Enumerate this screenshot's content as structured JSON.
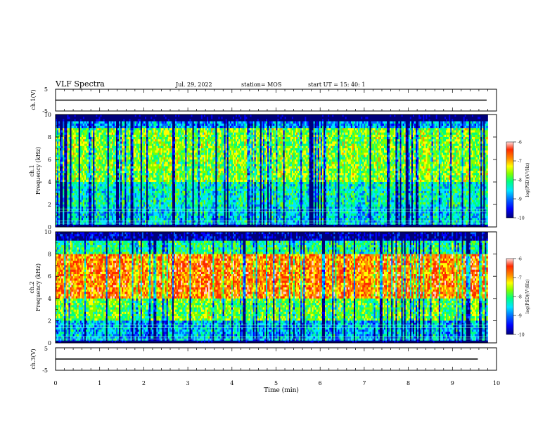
{
  "header": {
    "title": "VLF Spectra",
    "date": "Jul. 29, 2022",
    "station": "station= MOS",
    "start": "start  UT =  15: 40: 1"
  },
  "colors": {
    "colormap": [
      "#00007a",
      "#0000ff",
      "#0066ff",
      "#00e5ff",
      "#00ff7f",
      "#7fff00",
      "#ffff00",
      "#ff8c00",
      "#ff2a00",
      "#ffd6d6"
    ]
  },
  "chart_data": [
    {
      "type": "line",
      "panel": "ch1-voltage",
      "ylabel": "ch.1(V)",
      "ylim": [
        -5,
        5
      ],
      "yticks": [
        "5",
        "-5"
      ],
      "x": [
        0,
        10
      ],
      "y": [
        0,
        0
      ],
      "grid": false
    },
    {
      "type": "heatmap",
      "panel": "ch1-spectrogram",
      "ylabel_line1": "ch.1",
      "ylabel_line2": "Frequency (kHz)",
      "ylim": [
        0,
        10
      ],
      "yticks": [
        "0",
        "2",
        "4",
        "6",
        "8",
        "10"
      ],
      "xlim": [
        0,
        9.8
      ],
      "colorbar": {
        "label": "log(PSD)(V²/Hz)",
        "range": [
          -10,
          -6
        ],
        "ticks": [
          "-6",
          "-7",
          "-8",
          "-9",
          "-10"
        ]
      },
      "band_levels_log_psd": [
        {
          "from_khz": 0.0,
          "to_khz": 0.3,
          "level": -10.0
        },
        {
          "from_khz": 0.3,
          "to_khz": 1.8,
          "level": -8.6
        },
        {
          "from_khz": 1.8,
          "to_khz": 4.0,
          "level": -8.4
        },
        {
          "from_khz": 4.0,
          "to_khz": 8.8,
          "level": -7.8
        },
        {
          "from_khz": 8.8,
          "to_khz": 9.4,
          "level": -8.8
        },
        {
          "from_khz": 9.4,
          "to_khz": 10.0,
          "level": -10.0
        }
      ]
    },
    {
      "type": "heatmap",
      "panel": "ch2-spectrogram",
      "ylabel_line1": "ch.2",
      "ylabel_line2": "Frequency (kHz)",
      "ylim": [
        0,
        10
      ],
      "yticks": [
        "0",
        "2",
        "4",
        "6",
        "8",
        "10"
      ],
      "xlim": [
        0,
        9.8
      ],
      "colorbar": {
        "label": "log(PSD)(V²/Hz)",
        "range": [
          -10,
          -6
        ],
        "ticks": [
          "-6",
          "-7",
          "-8",
          "-9",
          "-10"
        ]
      },
      "band_levels_log_psd": [
        {
          "from_khz": 0.0,
          "to_khz": 0.3,
          "level": -10.0
        },
        {
          "from_khz": 0.3,
          "to_khz": 2.0,
          "level": -8.7
        },
        {
          "from_khz": 2.0,
          "to_khz": 4.0,
          "level": -7.9
        },
        {
          "from_khz": 4.0,
          "to_khz": 8.0,
          "level": -6.9
        },
        {
          "from_khz": 8.0,
          "to_khz": 9.2,
          "level": -8.2
        },
        {
          "from_khz": 9.2,
          "to_khz": 10.0,
          "level": -9.6
        }
      ]
    },
    {
      "type": "line",
      "panel": "ch3-voltage",
      "ylabel": "ch.3(V)",
      "ylim": [
        -5,
        5
      ],
      "yticks": [
        "5",
        "-5"
      ],
      "x": [
        0,
        9.8
      ],
      "y": [
        0,
        0
      ],
      "grid": false
    }
  ],
  "xaxis": {
    "label": "Time (min)",
    "ticks": [
      "0",
      "1",
      "2",
      "3",
      "4",
      "5",
      "6",
      "7",
      "8",
      "9",
      "10"
    ],
    "xlim": [
      0,
      10
    ]
  }
}
